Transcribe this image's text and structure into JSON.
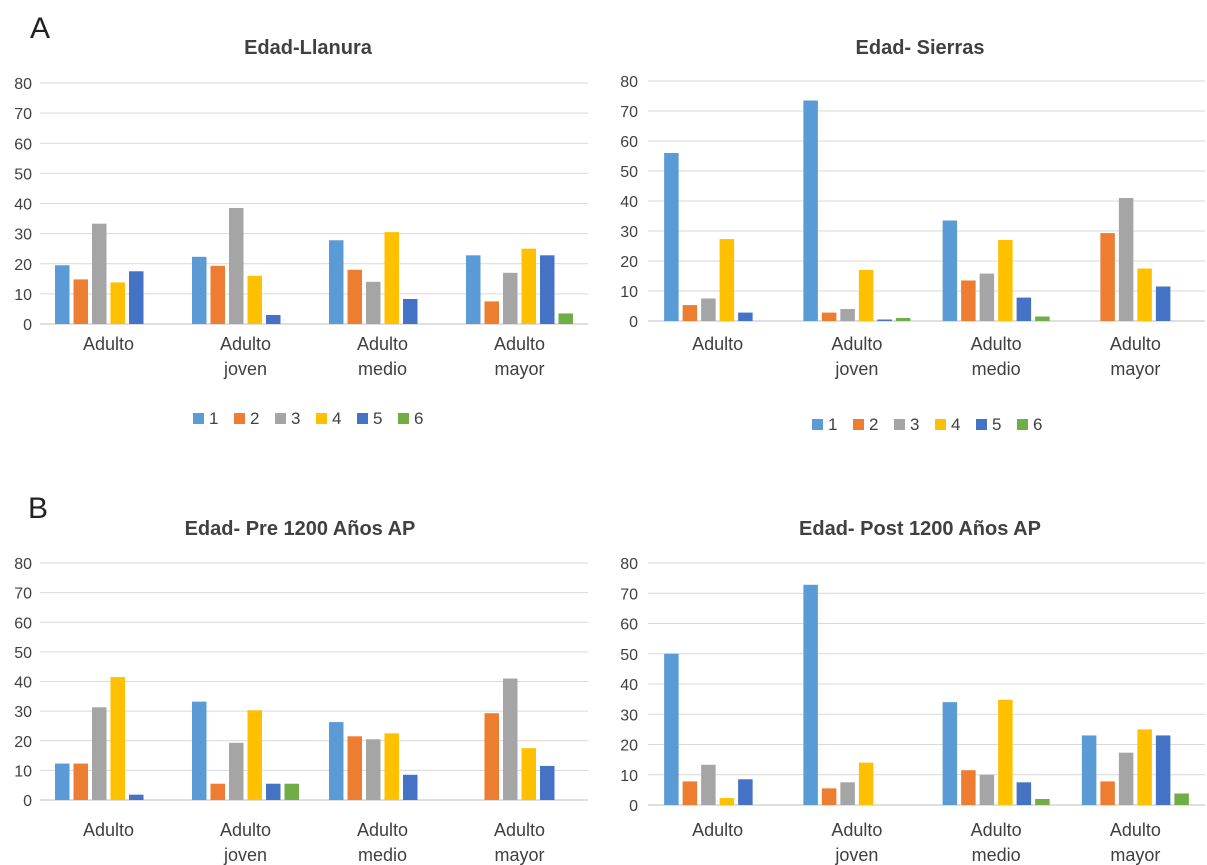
{
  "panels": {
    "a": "A",
    "b": "B"
  },
  "colors": {
    "1": "#5b9bd5",
    "2": "#ed7d31",
    "3": "#a5a5a5",
    "4": "#ffc000",
    "5": "#4472c4",
    "6": "#70ad47"
  },
  "chart_data": [
    {
      "type": "bar",
      "title": "Edad-Llanura",
      "categories": [
        [
          "Adulto"
        ],
        [
          "Adulto",
          "joven"
        ],
        [
          "Adulto",
          "medio"
        ],
        [
          "Adulto",
          "mayor"
        ]
      ],
      "ylim": [
        0,
        80
      ],
      "yticks": [
        0,
        10,
        20,
        30,
        40,
        50,
        60,
        70,
        80
      ],
      "grid": true,
      "legend": "bottom",
      "series": [
        {
          "name": "1",
          "values": [
            19.5,
            22.3,
            27.8,
            22.8
          ]
        },
        {
          "name": "2",
          "values": [
            14.8,
            19.3,
            18.0,
            7.5
          ]
        },
        {
          "name": "3",
          "values": [
            33.3,
            38.5,
            14.0,
            17.0
          ]
        },
        {
          "name": "4",
          "values": [
            13.8,
            16.0,
            30.5,
            25.0
          ]
        },
        {
          "name": "5",
          "values": [
            17.5,
            3.0,
            8.3,
            22.8
          ]
        },
        {
          "name": "6",
          "values": [
            0,
            0,
            0,
            3.5
          ]
        }
      ]
    },
    {
      "type": "bar",
      "title": "Edad- Sierras",
      "categories": [
        [
          "Adulto"
        ],
        [
          "Adulto",
          "joven"
        ],
        [
          "Adulto",
          "medio"
        ],
        [
          "Adulto",
          "mayor"
        ]
      ],
      "ylim": [
        0,
        80
      ],
      "yticks": [
        0,
        10,
        20,
        30,
        40,
        50,
        60,
        70,
        80
      ],
      "grid": true,
      "legend": "bottom",
      "series": [
        {
          "name": "1",
          "values": [
            56.0,
            73.5,
            33.5,
            0
          ]
        },
        {
          "name": "2",
          "values": [
            5.3,
            2.8,
            13.5,
            29.3
          ]
        },
        {
          "name": "3",
          "values": [
            7.5,
            4.0,
            15.8,
            41.0
          ]
        },
        {
          "name": "4",
          "values": [
            27.3,
            17.0,
            27.0,
            17.5
          ]
        },
        {
          "name": "5",
          "values": [
            2.8,
            0.5,
            7.8,
            11.5
          ]
        },
        {
          "name": "6",
          "values": [
            0,
            1.0,
            1.5,
            0
          ]
        }
      ]
    },
    {
      "type": "bar",
      "title": "Edad- Pre 1200 Años AP",
      "categories": [
        [
          "Adulto"
        ],
        [
          "Adulto",
          "joven"
        ],
        [
          "Adulto",
          "medio"
        ],
        [
          "Adulto",
          "mayor"
        ]
      ],
      "ylim": [
        0,
        80
      ],
      "yticks": [
        0,
        10,
        20,
        30,
        40,
        50,
        60,
        70,
        80
      ],
      "grid": true,
      "series": [
        {
          "name": "1",
          "values": [
            12.3,
            33.2,
            26.3,
            0
          ]
        },
        {
          "name": "2",
          "values": [
            12.3,
            5.5,
            21.5,
            29.3
          ]
        },
        {
          "name": "3",
          "values": [
            31.3,
            19.3,
            20.5,
            41.0
          ]
        },
        {
          "name": "4",
          "values": [
            41.5,
            30.3,
            22.5,
            17.5
          ]
        },
        {
          "name": "5",
          "values": [
            1.8,
            5.5,
            8.5,
            11.5
          ]
        },
        {
          "name": "6",
          "values": [
            0,
            5.5,
            0,
            0
          ]
        }
      ]
    },
    {
      "type": "bar",
      "title": "Edad- Post 1200 Años AP",
      "categories": [
        [
          "Adulto"
        ],
        [
          "Adulto",
          "joven"
        ],
        [
          "Adulto",
          "medio"
        ],
        [
          "Adulto",
          "mayor"
        ]
      ],
      "ylim": [
        0,
        80
      ],
      "yticks": [
        0,
        10,
        20,
        30,
        40,
        50,
        60,
        70,
        80
      ],
      "grid": true,
      "series": [
        {
          "name": "1",
          "values": [
            50.0,
            72.8,
            34.0,
            23.0
          ]
        },
        {
          "name": "2",
          "values": [
            7.8,
            5.5,
            11.5,
            7.8
          ]
        },
        {
          "name": "3",
          "values": [
            13.3,
            7.5,
            10.0,
            17.3
          ]
        },
        {
          "name": "4",
          "values": [
            2.3,
            14.0,
            34.8,
            25.0
          ]
        },
        {
          "name": "5",
          "values": [
            8.5,
            0,
            7.5,
            23.0
          ]
        },
        {
          "name": "6",
          "values": [
            0,
            0,
            2.0,
            3.8
          ]
        }
      ]
    }
  ]
}
